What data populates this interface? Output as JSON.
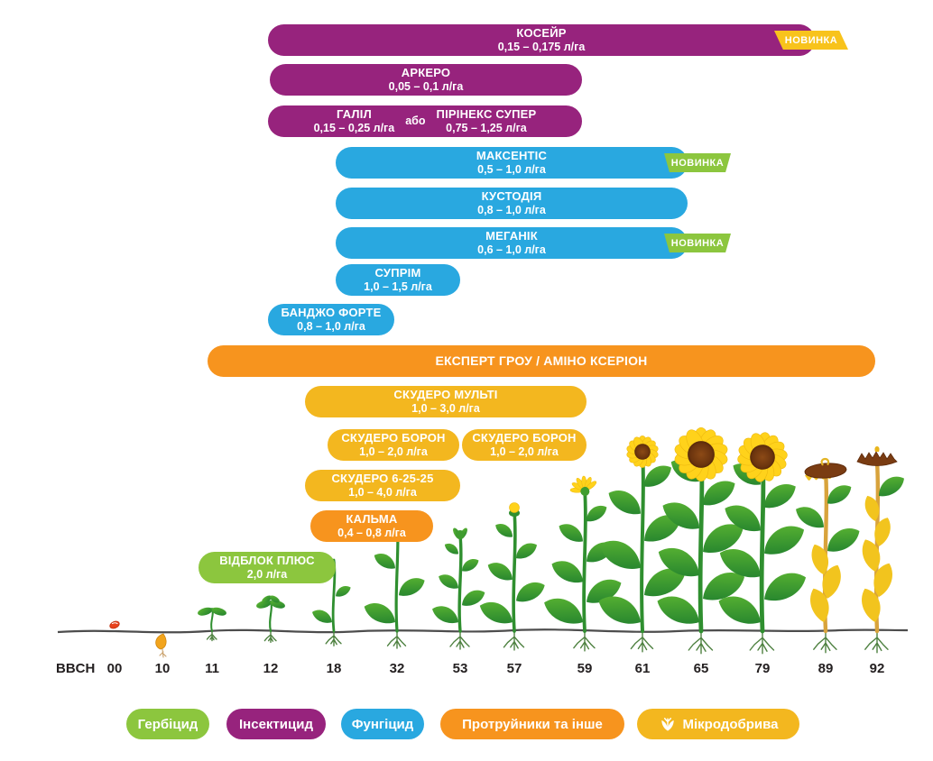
{
  "connector_label": "або",
  "badge_new_label": "НОВИНКА",
  "colors": {
    "herbicide": "#8CC63E",
    "insecticide": "#97237D",
    "fungicide": "#29A8E0",
    "seed_treaters_other": "#F7941E",
    "microfertilizers": "#F3B71F",
    "badge_new_yellow": "#F8C31C",
    "badge_new_green": "#8CC63E"
  },
  "chart_data": {
    "type": "gantt",
    "description": "Sunflower crop protection program: product application windows across BBCH growth stages",
    "x_axis": {
      "label": "BBCH",
      "ticks": [
        "00",
        "10",
        "11",
        "12",
        "18",
        "32",
        "53",
        "57",
        "59",
        "61",
        "65",
        "79",
        "89",
        "92"
      ]
    },
    "bars": [
      {
        "name": "КОСЕЙР",
        "dose": "0,15 – 0,175 л/га",
        "category": "Інсектицид",
        "bbch_from": "12",
        "bbch_to": "89",
        "badge": "НОВИНКА"
      },
      {
        "name": "АРКЕРО",
        "dose": "0,05 – 0,1 л/га",
        "category": "Інсектицид",
        "bbch_from": "12",
        "bbch_to": "59"
      },
      {
        "name": "ГАЛІЛ",
        "dose": "0,15 – 0,25 л/га",
        "category": "Інсектицид",
        "bbch_from": "12",
        "bbch_to": "59"
      },
      {
        "name": "ПІРІНЕКС СУПЕР",
        "dose": "0,75 – 1,25 л/га",
        "category": "Інсектицид",
        "bbch_from": "12",
        "bbch_to": "59"
      },
      {
        "name": "МАКСЕНТІС",
        "dose": "0,5 – 1,0 л/га",
        "category": "Фунгіцид",
        "bbch_from": "18",
        "bbch_to": "65",
        "badge": "НОВИНКА"
      },
      {
        "name": "КУСТОДІЯ",
        "dose": "0,8 – 1,0 л/га",
        "category": "Фунгіцид",
        "bbch_from": "18",
        "bbch_to": "65"
      },
      {
        "name": "МЕГАНІК",
        "dose": "0,6 – 1,0 л/га",
        "category": "Фунгіцид",
        "bbch_from": "18",
        "bbch_to": "65",
        "badge": "НОВИНКА"
      },
      {
        "name": "СУПРІМ",
        "dose": "1,0 – 1,5 л/га",
        "category": "Фунгіцид",
        "bbch_from": "18",
        "bbch_to": "53"
      },
      {
        "name": "БАНДЖО ФОРТЕ",
        "dose": "0,8 – 1,0 л/га",
        "category": "Фунгіцид",
        "bbch_from": "12",
        "bbch_to": "32"
      },
      {
        "name": "ЕКСПЕРТ ГРОУ / АМІНО КСЕРІОН",
        "dose": "",
        "category": "Протруйники та інше",
        "bbch_from": "11",
        "bbch_to": "92"
      },
      {
        "name": "СКУДЕРО МУЛЬТІ",
        "dose": "1,0 – 3,0 л/га",
        "category": "Мікродобрива",
        "bbch_from": "18",
        "bbch_to": "59"
      },
      {
        "name": "СКУДЕРО БОРОН",
        "dose": "1,0 – 2,0 л/га",
        "category": "Мікродобрива",
        "bbch_from": "18",
        "bbch_to": "53"
      },
      {
        "name": "СКУДЕРО БОРОН",
        "dose": "1,0 – 2,0 л/га",
        "category": "Мікродобрива",
        "bbch_from": "53",
        "bbch_to": "59"
      },
      {
        "name": "СКУДЕРО 6-25-25",
        "dose": "1,0 – 4,0 л/га",
        "category": "Мікродобрива",
        "bbch_from": "18",
        "bbch_to": "53"
      },
      {
        "name": "КАЛЬМА",
        "dose": "0,4 – 0,8 л/га",
        "category": "Протруйники та інше",
        "bbch_from": "18",
        "bbch_to": "32"
      },
      {
        "name": "ВІДБЛОК ПЛЮС",
        "dose": "2,0 л/га",
        "category": "Гербіцид",
        "bbch_from": "11",
        "bbch_to": "18"
      }
    ],
    "legend_position": "bottom"
  },
  "legend": {
    "items": [
      {
        "label": "Гербіцид",
        "color": "#8CC63E"
      },
      {
        "label": "Інсектицид",
        "color": "#97237D"
      },
      {
        "label": "Фунгіцид",
        "color": "#29A8E0"
      },
      {
        "label": "Протруйники та інше",
        "color": "#F7941E"
      },
      {
        "label": "Мікродобрива",
        "color": "#F3B71F"
      }
    ]
  }
}
